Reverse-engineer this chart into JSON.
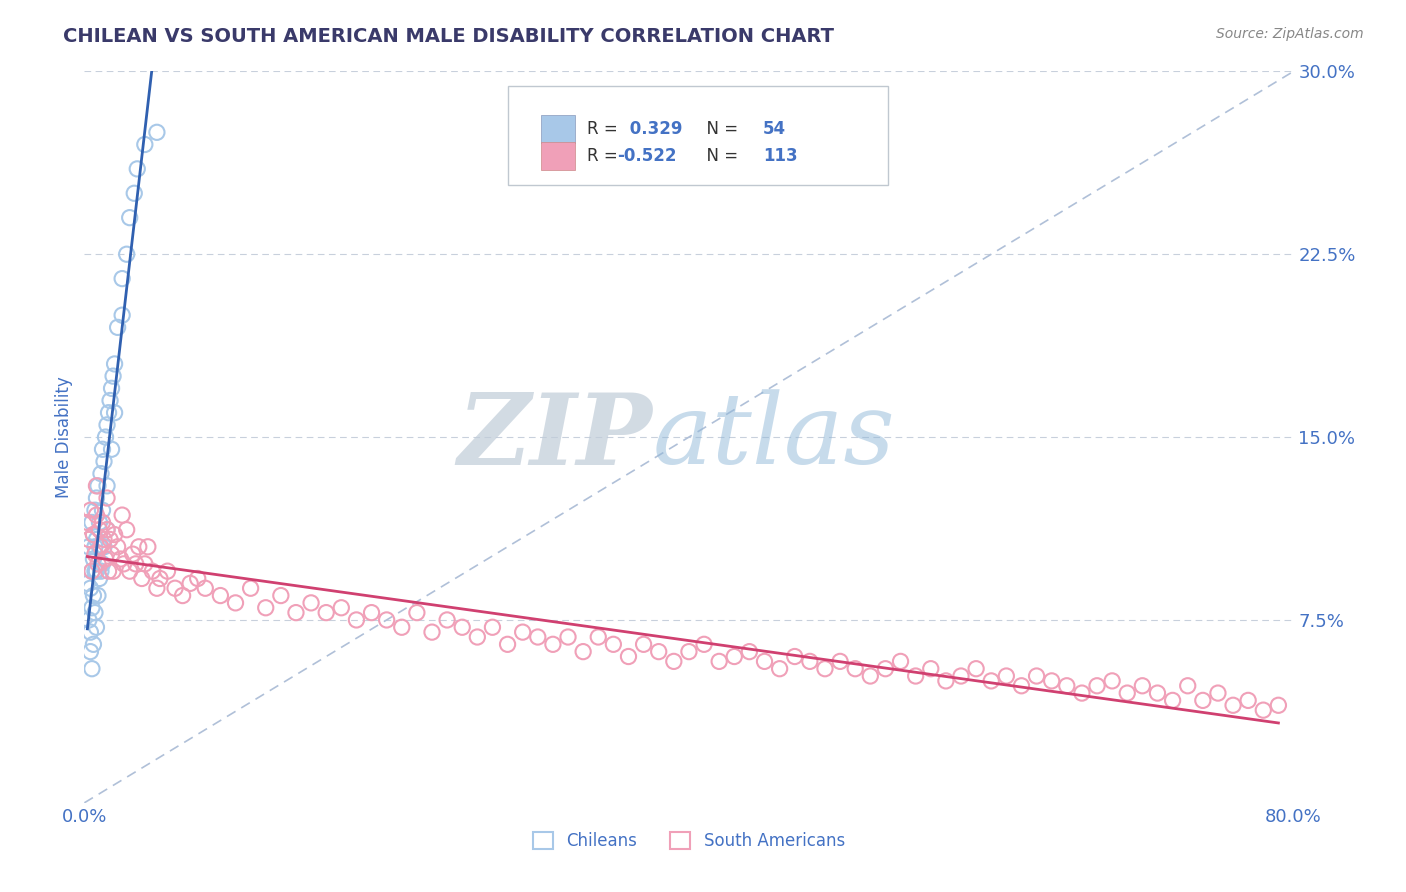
{
  "title": "CHILEAN VS SOUTH AMERICAN MALE DISABILITY CORRELATION CHART",
  "source": "Source: ZipAtlas.com",
  "ylabel": "Male Disability",
  "yticks": [
    0.0,
    0.075,
    0.15,
    0.225,
    0.3
  ],
  "ytick_labels": [
    "",
    "7.5%",
    "15.0%",
    "22.5%",
    "30.0%"
  ],
  "xlim": [
    0.0,
    0.8
  ],
  "ylim": [
    0.0,
    0.3
  ],
  "chilean_color": "#a8c8e8",
  "chilean_line_color": "#3060b0",
  "sa_color": "#f0a0b8",
  "sa_line_color": "#d04070",
  "legend_box_color_1": "#a8c8e8",
  "legend_box_color_2": "#f0a0b8",
  "R1": "0.329",
  "N1": "54",
  "R2": "-0.522",
  "N2": "113",
  "diagonal_color": "#b0c0d8",
  "title_color": "#3a3a6a",
  "axis_label_color": "#4472c4",
  "tick_label_color": "#4472c4",
  "legend_text_color": "#333333",
  "legend_value_color": "#4472c4",
  "chileans_label": "Chileans",
  "sa_label": "South Americans",
  "background_color": "#ffffff",
  "grid_color": "#c8d0dc",
  "source_color": "#888888",
  "watermark_zip_color": "#b8c8d8",
  "watermark_atlas_color": "#90b0d0"
}
